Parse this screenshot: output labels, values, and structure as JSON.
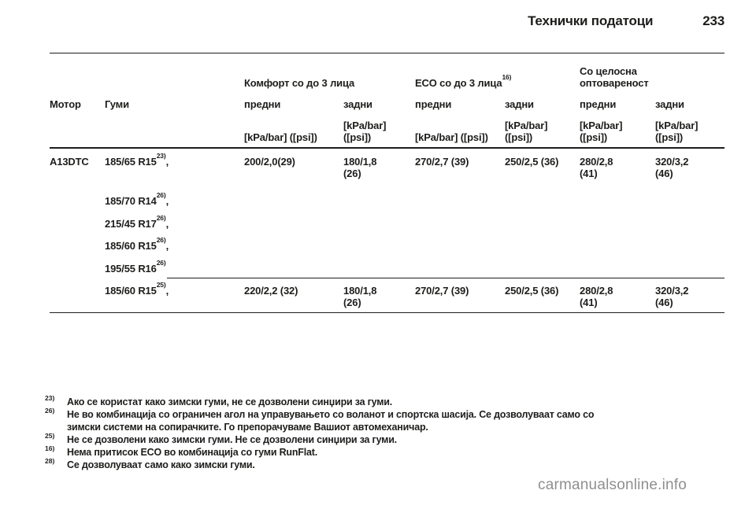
{
  "header": {
    "title": "Технички податоци",
    "page_number": "233"
  },
  "table": {
    "columns": {
      "motor": "Мотор",
      "tires": "Гуми"
    },
    "groups": {
      "comfort": {
        "label": "Комфорт со до 3 лица",
        "sup": ""
      },
      "eco": {
        "label": "ECO со до 3 лица",
        "sup": "16)"
      },
      "full_load": {
        "label": "Со целосна\nоптовареност"
      }
    },
    "subheaders": {
      "front": "предни",
      "rear": "задни"
    },
    "units": {
      "inline": "[kPa/bar] ([psi])",
      "wrapped": "[kPa/bar]\n([psi])"
    },
    "rows": [
      {
        "motor": "A13DTC",
        "tires": [
          {
            "size": "185/65 R15",
            "sup": "23)",
            "suffix": ","
          },
          {
            "size": "185/70 R14",
            "sup": "26)",
            "suffix": ","
          },
          {
            "size": "215/45 R17",
            "sup": "26)",
            "suffix": ","
          },
          {
            "size": "185/60 R15",
            "sup": "26)",
            "suffix": ","
          },
          {
            "size": "195/55 R16",
            "sup": "26)",
            "suffix": ""
          }
        ],
        "values": [
          "200/2,0(29)",
          "180/1,8\n(26)",
          "270/2,7 (39)",
          "250/2,5 (36)",
          "280/2,8\n(41)",
          "320/3,2\n(46)"
        ]
      },
      {
        "motor": "",
        "tires": [
          {
            "size": "185/60 R15",
            "sup": "25)",
            "suffix": ","
          }
        ],
        "values": [
          "220/2,2 (32)",
          "180/1,8\n(26)",
          "270/2,7 (39)",
          "250/2,5 (36)",
          "280/2,8\n(41)",
          "320/3,2\n(46)"
        ]
      }
    ]
  },
  "footnotes": [
    {
      "marker": "23)",
      "text": "Ако се користат како зимски гуми, не се дозволени синџири за гуми."
    },
    {
      "marker": "26)",
      "text": "Не во комбинација со ограничен агол на управувањето со воланот и спортска шасија. Се дозволуваат само со\nзимски системи на сопирачките. Го препорачуваме Вашиот автомеханичар."
    },
    {
      "marker": "25)",
      "text": "Не се дозволени како зимски гуми. Не се дозволени синџири за гуми."
    },
    {
      "marker": "16)",
      "text": "Нема притисок ECO во комбинација со гуми RunFlat."
    },
    {
      "marker": "28)",
      "text": "Се дозволуваат само како зимски гуми."
    }
  ],
  "watermark": "carmanualsonline.info"
}
